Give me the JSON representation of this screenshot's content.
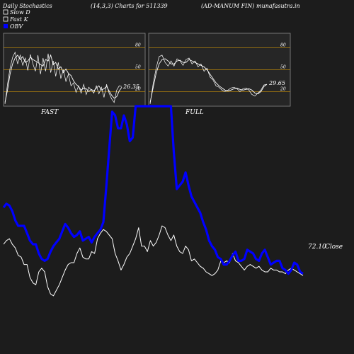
{
  "header": {
    "left": "Daily Stochastics",
    "params": "(14,3,3) Charts for 511339",
    "company": "(AD-MANUM FIN) munafasutra.in"
  },
  "legend": [
    {
      "label": "Slow  D",
      "color": "#ffffff",
      "style": "outline"
    },
    {
      "label": "Fast K",
      "color": "#ffffff",
      "style": "outline"
    },
    {
      "label": "OBV",
      "color": "#0000ff",
      "style": "filled"
    }
  ],
  "colors": {
    "background": "#1c1c1c",
    "panel_bg": "#262626",
    "level_line": "#b8860b",
    "obv": "#0000ff",
    "price": "#ffffff"
  },
  "chart_data": [
    {
      "id": "fast",
      "type": "line",
      "caption": "FAST",
      "levels": [
        80,
        50,
        20
      ],
      "ylim": [
        0,
        100
      ],
      "last_value_label": "26.35",
      "series": [
        {
          "values": [
            5,
            22,
            44,
            58,
            66,
            70,
            64,
            68,
            60,
            62,
            67,
            64,
            62,
            60,
            57,
            55,
            64,
            62,
            70,
            57,
            60,
            51,
            54,
            46,
            51,
            45,
            42,
            35,
            30,
            27,
            22,
            25,
            24,
            20,
            23,
            21,
            25,
            28,
            22,
            24,
            27,
            21,
            15,
            11,
            13,
            21,
            26
          ]
        },
        {
          "values": [
            3,
            30,
            52,
            67,
            74,
            58,
            70,
            56,
            66,
            49,
            71,
            58,
            48,
            70,
            44,
            66,
            48,
            72,
            46,
            62,
            41,
            60,
            38,
            50,
            34,
            44,
            28,
            32,
            19,
            28,
            18,
            30,
            16,
            26,
            22,
            18,
            28,
            17,
            26,
            12,
            30,
            18,
            10,
            5,
            22,
            28,
            27
          ]
        }
      ]
    },
    {
      "id": "full",
      "type": "line",
      "caption": "FULL",
      "levels": [
        80,
        50,
        20
      ],
      "ylim": [
        0,
        100
      ],
      "last_value_label": "29.65",
      "series": [
        {
          "values": [
            5,
            25,
            45,
            58,
            64,
            65,
            62,
            58,
            58,
            62,
            63,
            60,
            60,
            64,
            62,
            60,
            58,
            56,
            54,
            50,
            44,
            38,
            32,
            28,
            25,
            22,
            21,
            22,
            24,
            25,
            23,
            22,
            23,
            24,
            22,
            18,
            17,
            20,
            27,
            30
          ]
        },
        {
          "values": [
            3,
            30,
            52,
            68,
            70,
            60,
            55,
            62,
            55,
            65,
            62,
            56,
            64,
            66,
            58,
            62,
            54,
            58,
            48,
            52,
            40,
            36,
            28,
            26,
            22,
            20,
            22,
            25,
            26,
            24,
            20,
            24,
            25,
            22,
            16,
            14,
            18,
            22,
            29,
            30
          ]
        }
      ]
    },
    {
      "id": "main",
      "type": "line",
      "last_value_label": "72.10",
      "last_value_suffix": "Close",
      "series": [
        {
          "name": "OBV",
          "color": "#0000ff",
          "values": [
            45,
            47,
            46,
            43,
            38,
            35,
            35,
            35,
            31,
            27,
            25,
            25,
            20,
            17,
            16,
            17,
            21,
            24,
            26,
            28,
            32,
            36,
            34,
            31,
            29,
            30,
            32,
            27,
            28,
            29,
            26,
            29,
            31,
            33,
            37,
            56,
            77,
            97,
            95,
            88,
            88,
            95,
            90,
            81,
            83,
            100,
            100,
            100,
            100,
            100,
            100,
            100,
            100,
            100,
            100,
            100,
            100,
            100,
            75,
            55,
            57,
            59,
            64,
            57,
            51,
            48,
            45,
            42,
            37,
            33,
            27,
            24,
            22,
            18,
            17,
            14,
            14,
            16,
            19,
            21,
            16,
            16,
            17,
            22,
            21,
            20,
            17,
            16,
            20,
            22,
            18,
            14,
            15,
            16,
            16,
            12,
            11,
            9,
            11,
            15,
            14,
            10,
            9
          ]
        },
        {
          "name": "Close",
          "color": "#ffffff",
          "values": [
            25,
            27,
            28,
            25,
            23,
            19,
            18,
            14,
            14,
            7,
            4,
            3,
            10,
            12,
            10,
            2,
            -2,
            -3,
            0,
            3,
            7,
            11,
            14,
            15,
            15,
            20,
            23,
            18,
            17,
            17,
            21,
            20,
            28,
            31,
            33,
            32,
            30,
            28,
            20,
            16,
            11,
            14,
            18,
            20,
            24,
            28,
            34,
            24,
            24,
            21,
            27,
            24,
            26,
            30,
            35,
            34,
            30,
            27,
            30,
            24,
            21,
            20,
            24,
            22,
            16,
            17,
            15,
            13,
            12,
            10,
            9,
            8,
            9,
            11,
            16,
            15,
            16,
            15,
            20,
            16,
            15,
            13,
            11,
            13,
            14,
            13,
            12,
            13,
            11,
            10,
            10,
            12,
            11,
            11,
            10,
            10,
            9,
            11,
            12,
            11,
            10,
            9,
            8
          ]
        }
      ]
    }
  ]
}
